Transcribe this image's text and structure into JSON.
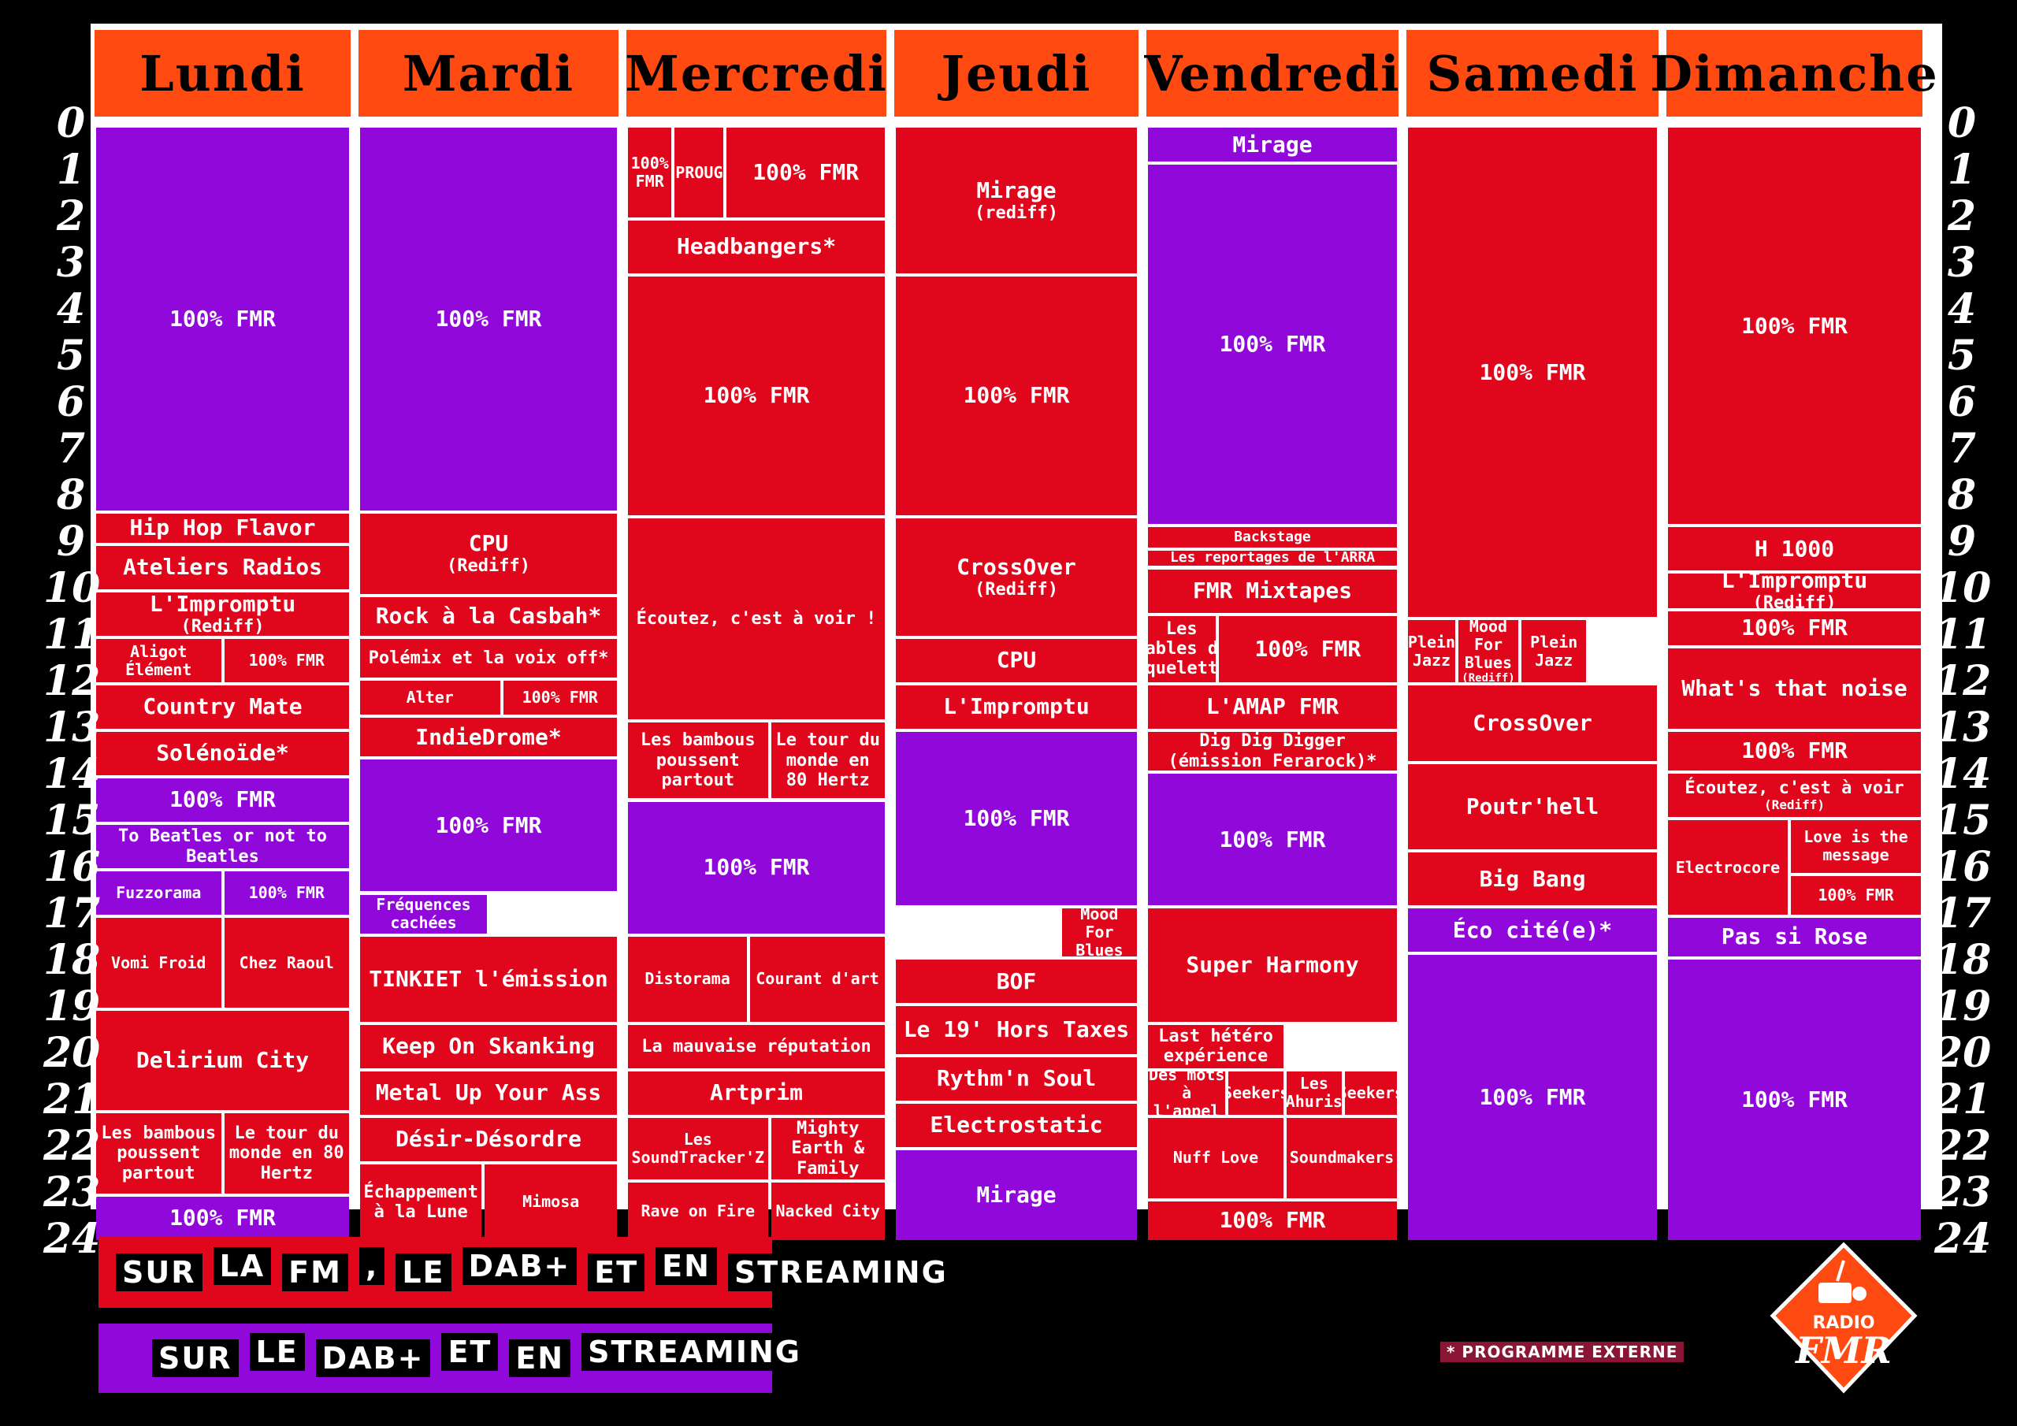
{
  "days": [
    "Lundi",
    "Mardi",
    "Mercredi",
    "Jeudi",
    "Vendredi",
    "Samedi",
    "Dimanche"
  ],
  "hours": [
    "0",
    "1",
    "2",
    "3",
    "4",
    "5",
    "6",
    "7",
    "8",
    "9",
    "10",
    "11",
    "12",
    "13",
    "14",
    "15",
    "16",
    "17",
    "18",
    "19",
    "20",
    "21",
    "22",
    "23",
    "24"
  ],
  "colors": {
    "red": "#e0061c",
    "purple": "#9108db",
    "orange": "#ff4a12",
    "black": "#000000",
    "white": "#ffffff"
  },
  "schedule": {
    "lundi": [
      {
        "label": "100% FMR",
        "color": "purple"
      },
      {
        "label": "Hip Hop Flavor",
        "color": "red"
      },
      {
        "label": "Ateliers Radios",
        "color": "red"
      },
      {
        "label": "L'Impromptu",
        "sub": "(Rediff)",
        "color": "red"
      },
      {
        "label": "Aligot Élément",
        "color": "red"
      },
      {
        "label": "100% FMR",
        "color": "red"
      },
      {
        "label": "Country Mate",
        "color": "red"
      },
      {
        "label": "Solénoïde*",
        "color": "red"
      },
      {
        "label": "100% FMR",
        "color": "purple"
      },
      {
        "label": "To Beatles or not to Beatles",
        "color": "purple"
      },
      {
        "label": "Fuzzorama",
        "color": "purple"
      },
      {
        "label": "100% FMR",
        "color": "purple"
      },
      {
        "label": "Vomi Froid",
        "color": "red"
      },
      {
        "label": "Chez Raoul",
        "color": "red"
      },
      {
        "label": "Delirium City",
        "color": "red"
      },
      {
        "label": "Les bambous poussent partout",
        "color": "red"
      },
      {
        "label": "Le tour du monde en 80 Hertz",
        "color": "red"
      },
      {
        "label": "100% FMR",
        "color": "purple"
      }
    ],
    "mardi": [
      {
        "label": "100% FMR",
        "color": "purple"
      },
      {
        "label": "CPU",
        "sub": "(Rediff)",
        "color": "red"
      },
      {
        "label": "Rock à la Casbah*",
        "color": "red"
      },
      {
        "label": "Polémix et la voix off*",
        "color": "red"
      },
      {
        "label": "Alter",
        "color": "red"
      },
      {
        "label": "100% FMR",
        "color": "red"
      },
      {
        "label": "IndieDrome*",
        "color": "red"
      },
      {
        "label": "100% FMR",
        "color": "purple"
      },
      {
        "label": "Fréquences cachées",
        "color": "purple"
      },
      {
        "label": "TINKIET l'émission",
        "color": "red"
      },
      {
        "label": "Keep On Skanking",
        "color": "red"
      },
      {
        "label": "Metal Up Your Ass",
        "color": "red"
      },
      {
        "label": "Désir-Désordre",
        "color": "red"
      },
      {
        "label": "Échappement à la Lune",
        "color": "red"
      },
      {
        "label": "Mimosa",
        "color": "red"
      }
    ],
    "mercredi": [
      {
        "label": "100% FMR",
        "color": "red"
      },
      {
        "label": "PROUG",
        "color": "red"
      },
      {
        "label": "100% FMR",
        "color": "red"
      },
      {
        "label": "Headbangers*",
        "color": "red"
      },
      {
        "label": "100% FMR",
        "color": "red"
      },
      {
        "label": "Écoutez, c'est à voir !",
        "color": "red"
      },
      {
        "label": "Les bambous poussent partout",
        "color": "red"
      },
      {
        "label": "Le tour du monde en 80 Hertz",
        "color": "red"
      },
      {
        "label": "100% FMR",
        "color": "purple"
      },
      {
        "label": "Distorama",
        "color": "red"
      },
      {
        "label": "Courant d'art",
        "color": "red"
      },
      {
        "label": "La mauvaise réputation",
        "color": "red"
      },
      {
        "label": "Artprim",
        "color": "red"
      },
      {
        "label": "Les SoundTracker'Z",
        "color": "red"
      },
      {
        "label": "Mighty Earth & Family",
        "color": "red"
      },
      {
        "label": "Rave on Fire",
        "color": "red"
      },
      {
        "label": "Nacked City",
        "color": "red"
      }
    ],
    "jeudi": [
      {
        "label": "Mirage",
        "sub": "(rediff)",
        "color": "red"
      },
      {
        "label": "100% FMR",
        "color": "red"
      },
      {
        "label": "CrossOver",
        "sub": "(Rediff)",
        "color": "red"
      },
      {
        "label": "CPU",
        "color": "red"
      },
      {
        "label": "L'Impromptu",
        "color": "red"
      },
      {
        "label": "100% FMR",
        "color": "purple"
      },
      {
        "label": "Mood For Blues",
        "color": "red"
      },
      {
        "label": "BOF",
        "color": "red"
      },
      {
        "label": "Le 19' Hors Taxes",
        "color": "red"
      },
      {
        "label": "Rythm'n Soul",
        "color": "red"
      },
      {
        "label": "Electrostatic",
        "color": "red"
      },
      {
        "label": "Mirage",
        "color": "purple"
      }
    ],
    "vendredi": [
      {
        "label": "Mirage",
        "color": "purple"
      },
      {
        "label": "100% FMR",
        "color": "purple"
      },
      {
        "label": "Backstage",
        "color": "red"
      },
      {
        "label": "Les reportages de l'ARRA",
        "color": "red"
      },
      {
        "label": "FMR Mixtapes",
        "color": "red"
      },
      {
        "label": "Les fables du squelette",
        "color": "red"
      },
      {
        "label": "100% FMR",
        "color": "red"
      },
      {
        "label": "L'AMAP FMR",
        "color": "red"
      },
      {
        "label": "Dig Dig Digger (émission Ferarock)*",
        "color": "red"
      },
      {
        "label": "100% FMR",
        "color": "purple"
      },
      {
        "label": "Super Harmony",
        "color": "red"
      },
      {
        "label": "Last hétéro expérience",
        "color": "red"
      },
      {
        "label": "Des mots à l'appel",
        "color": "red"
      },
      {
        "label": "Seekers",
        "color": "red"
      },
      {
        "label": "Les Ahuris",
        "color": "red"
      },
      {
        "label": "Seekers",
        "color": "red"
      },
      {
        "label": "Nuff Love",
        "color": "red"
      },
      {
        "label": "Soundmakers",
        "color": "red"
      },
      {
        "label": "100% FMR",
        "color": "red"
      }
    ],
    "samedi": [
      {
        "label": "100% FMR",
        "color": "red"
      },
      {
        "label": "Plein Jazz",
        "color": "red"
      },
      {
        "label": "Mood For Blues",
        "sub": "(Rediff)",
        "color": "red"
      },
      {
        "label": "Plein Jazz",
        "color": "red"
      },
      {
        "label": "CrossOver",
        "color": "red"
      },
      {
        "label": "Poutr'hell",
        "color": "red"
      },
      {
        "label": "Big Bang",
        "color": "red"
      },
      {
        "label": "Éco cité(e)*",
        "color": "purple"
      },
      {
        "label": "100% FMR",
        "color": "purple"
      }
    ],
    "dimanche": [
      {
        "label": "100% FMR",
        "color": "red"
      },
      {
        "label": "H 1000",
        "color": "red"
      },
      {
        "label": "L'Impromptu",
        "sub": "(Rediff)",
        "color": "red"
      },
      {
        "label": "100% FMR",
        "color": "red"
      },
      {
        "label": "What's that noise",
        "color": "red"
      },
      {
        "label": "100% FMR",
        "color": "red"
      },
      {
        "label": "Écoutez, c'est à voir",
        "sub": "(Rediff)",
        "color": "red"
      },
      {
        "label": "Electrocore",
        "color": "red"
      },
      {
        "label": "Love is the message",
        "color": "red"
      },
      {
        "label": "100% FMR",
        "color": "red"
      },
      {
        "label": "Pas si Rose",
        "color": "purple"
      },
      {
        "label": "100% FMR",
        "color": "purple"
      }
    ]
  },
  "legend": {
    "fm": [
      "SUR",
      "LA",
      "FM",
      ",",
      "LE",
      "DAB+",
      "ET",
      "EN",
      "STREAMING"
    ],
    "dab": [
      "SUR",
      "LE",
      "DAB+",
      "ET",
      "EN",
      "STREAMING"
    ]
  },
  "footnote": "* PROGRAMME EXTERNE",
  "logo": {
    "text_top": "RADIO",
    "text_main": "FMR"
  }
}
